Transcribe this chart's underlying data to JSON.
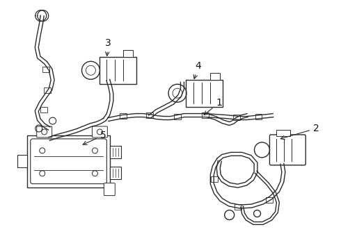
{
  "background_color": "#ffffff",
  "line_color": "#2a2a2a",
  "line_width": 1.0,
  "label_color": "#111111",
  "label_fontsize": 9,
  "fig_width": 4.9,
  "fig_height": 3.6,
  "dpi": 100
}
